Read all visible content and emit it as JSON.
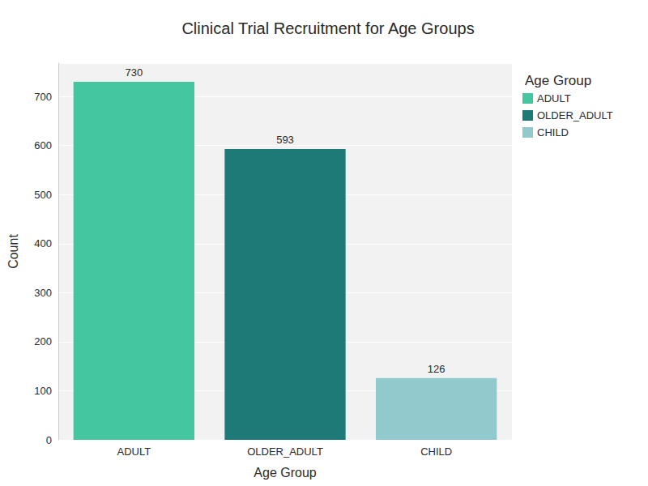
{
  "chart_data": {
    "type": "bar",
    "title": "Clinical Trial Recruitment for Age Groups",
    "x_label": "Age Group",
    "y_label": "Count",
    "legend_title": "Age Group",
    "categories": [
      "ADULT",
      "OLDER_ADULT",
      "CHILD"
    ],
    "series": [
      {
        "name": "ADULT",
        "color": "#44c6a0",
        "values": [
          730,
          null,
          null
        ]
      },
      {
        "name": "OLDER_ADULT",
        "color": "#1e7a77",
        "values": [
          null,
          593,
          null
        ]
      },
      {
        "name": "CHILD",
        "color": "#91c9cc",
        "values": [
          null,
          null,
          126
        ]
      }
    ],
    "ylim": [
      0,
      768
    ],
    "yticks": [
      0,
      100,
      200,
      300,
      400,
      500,
      600,
      700
    ],
    "grid": true,
    "legend": "upper right",
    "data_labels": true
  }
}
